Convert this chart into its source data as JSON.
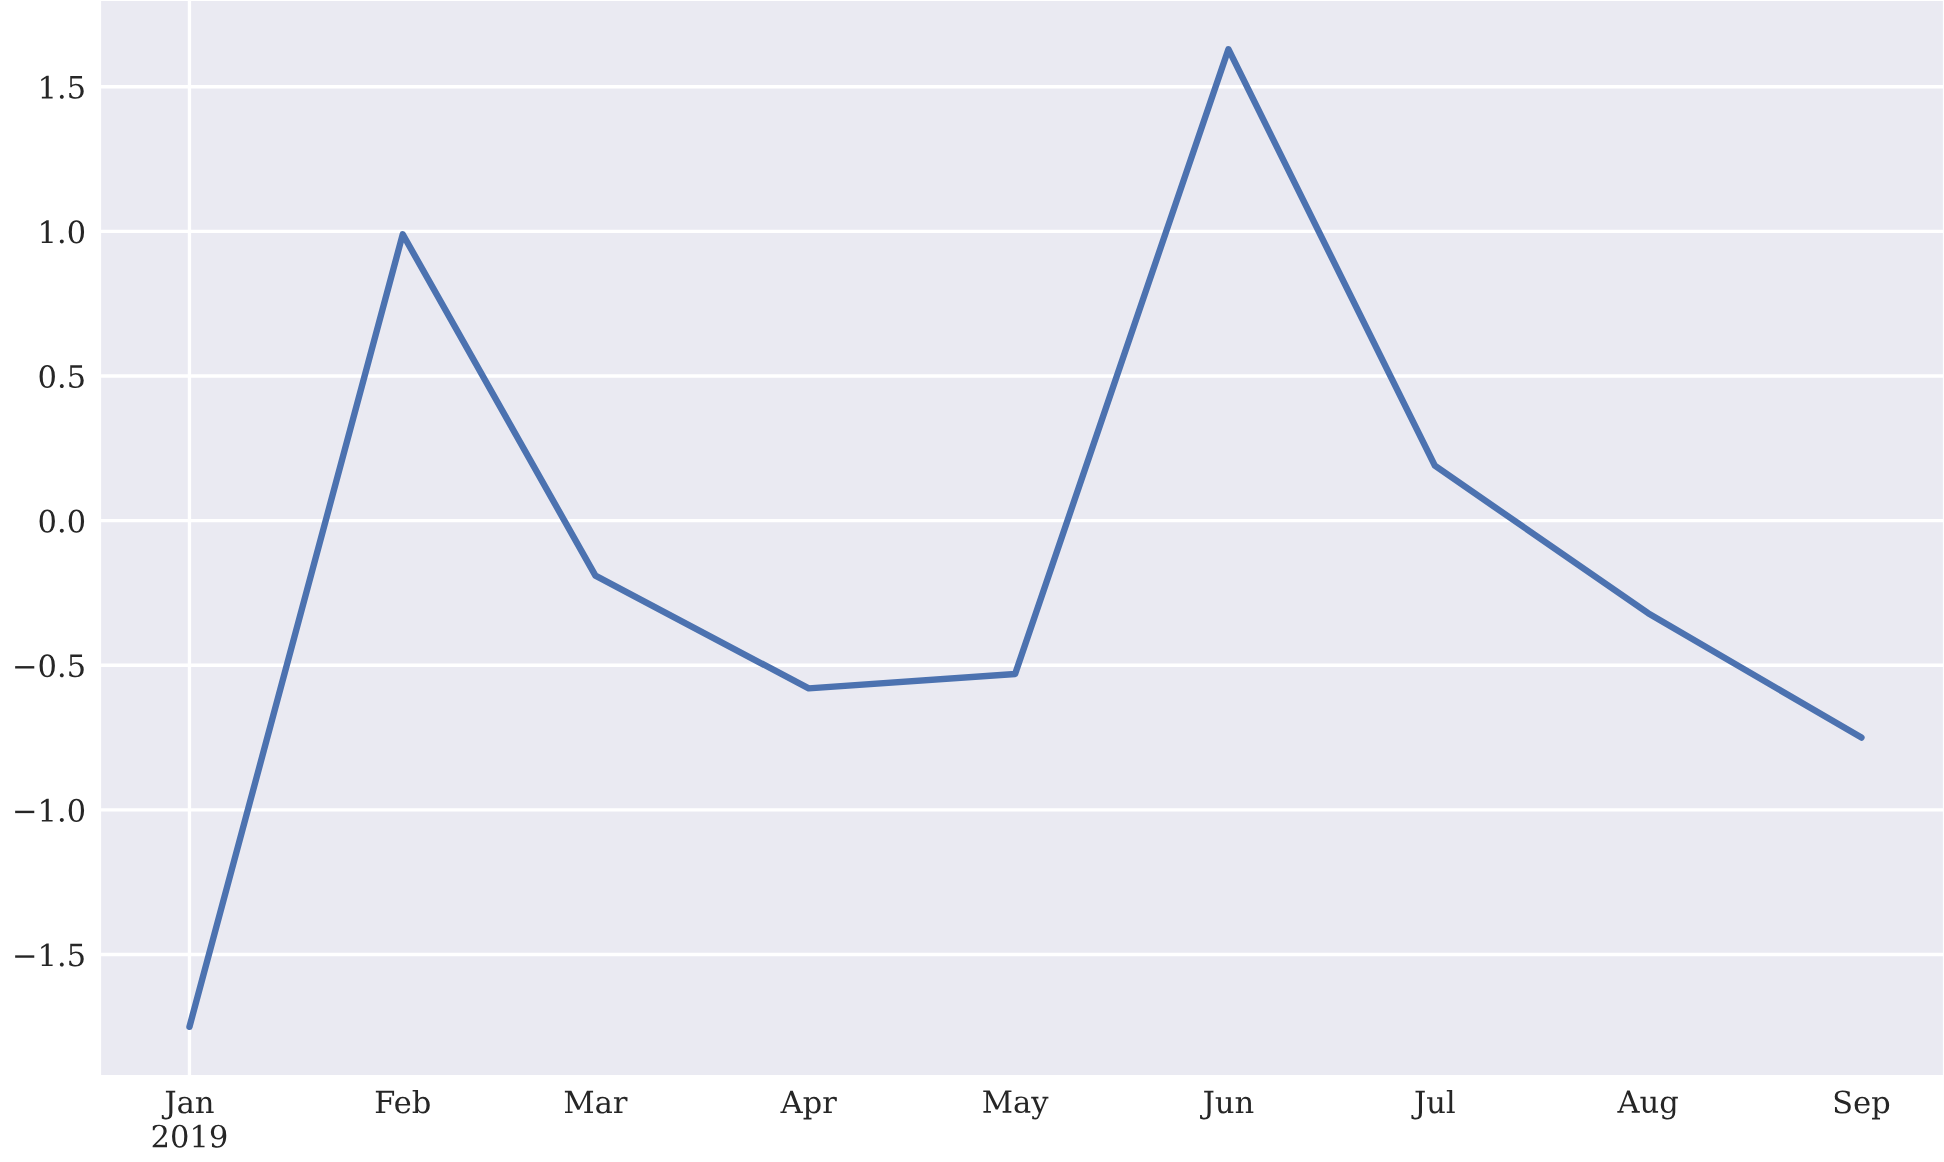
{
  "chart_data": {
    "type": "line",
    "x": [
      "2019-01",
      "2019-02",
      "2019-03",
      "2019-04",
      "2019-05",
      "2019-06",
      "2019-07",
      "2019-08",
      "2019-09"
    ],
    "series": [
      {
        "color": "#4c72b0",
        "values": [
          -1.75,
          0.99,
          -0.19,
          -0.58,
          -0.53,
          1.63,
          0.19,
          -0.32,
          -0.75
        ]
      }
    ],
    "xlim": [
      "2018-12-19",
      "2019-09-13"
    ],
    "xticks": [
      {
        "value": "2019-01",
        "label": "Jan\n2019"
      },
      {
        "value": "2019-02",
        "label": "Feb"
      },
      {
        "value": "2019-03",
        "label": "Mar"
      },
      {
        "value": "2019-04",
        "label": "Apr"
      },
      {
        "value": "2019-05",
        "label": "May"
      },
      {
        "value": "2019-06",
        "label": "Jun"
      },
      {
        "value": "2019-07",
        "label": "Jul"
      },
      {
        "value": "2019-08",
        "label": "Aug"
      },
      {
        "value": "2019-09",
        "label": "Sep"
      }
    ],
    "ylim": [
      -1.92,
      1.8
    ],
    "yticks": [
      {
        "value": -1.5,
        "label": "−1.5"
      },
      {
        "value": -1.0,
        "label": "−1.0"
      },
      {
        "value": -0.5,
        "label": "−0.5"
      },
      {
        "value": 0.0,
        "label": "0.0"
      },
      0.5,
      {
        "value": 1.0,
        "label": "1.0"
      },
      1.5
    ],
    "grid": true
  }
}
